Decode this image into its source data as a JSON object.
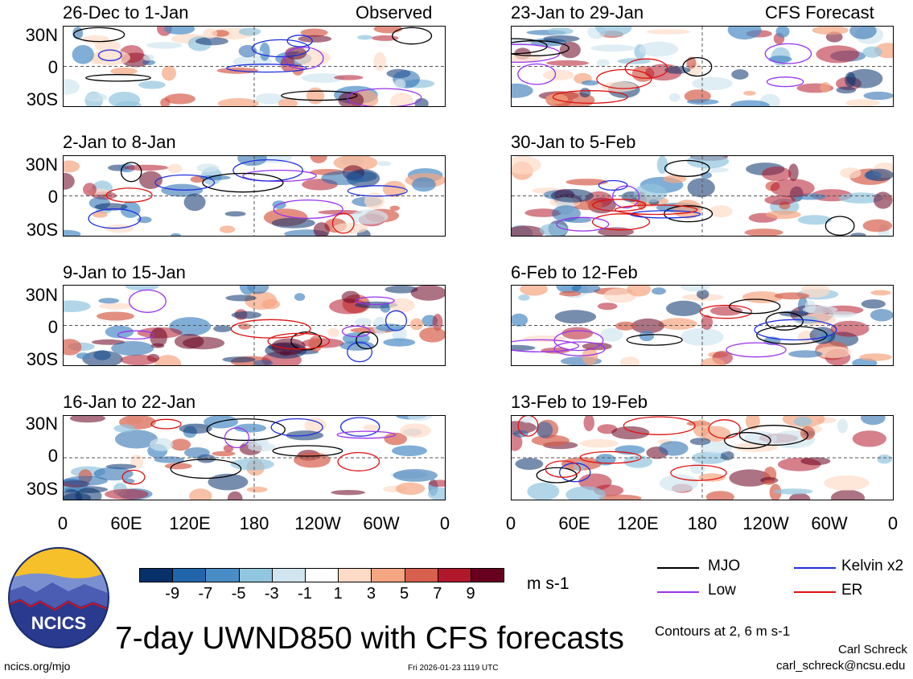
{
  "chart_data": {
    "type": "heatmap",
    "title": "7-day UWND850 with CFS forecasts",
    "units": "m s-1",
    "x_ticks": [
      "0",
      "60E",
      "120E",
      "180",
      "120W",
      "60W",
      "0"
    ],
    "y_ticks": [
      "30N",
      "0",
      "30S"
    ],
    "colorbar": {
      "tick_labels": [
        "-9",
        "-7",
        "-5",
        "-3",
        "-1",
        "1",
        "3",
        "5",
        "7",
        "9"
      ],
      "colors": [
        "#08306b",
        "#2166ac",
        "#4a8cc6",
        "#92c5de",
        "#d1e5f0",
        "#ffffff",
        "#fddbc7",
        "#f4a582",
        "#d6604d",
        "#b2182b",
        "#67001f"
      ]
    },
    "legend": [
      {
        "label": "MJO",
        "color": "#000000"
      },
      {
        "label": "Kelvin x2",
        "color": "#1f2fe0"
      },
      {
        "label": "Low",
        "color": "#9933ee"
      },
      {
        "label": "ER",
        "color": "#e01010"
      }
    ],
    "contours_note": "Contours at 2, 6 m s-1",
    "panels": [
      {
        "label": "26-Dec to 1-Jan",
        "tag": "Observed"
      },
      {
        "label": "2-Jan to 8-Jan",
        "tag": ""
      },
      {
        "label": "9-Jan to 15-Jan",
        "tag": ""
      },
      {
        "label": "16-Jan to 22-Jan",
        "tag": ""
      },
      {
        "label": "23-Jan to 29-Jan",
        "tag": "CFS Forecast"
      },
      {
        "label": "30-Jan to 5-Feb",
        "tag": ""
      },
      {
        "label": "6-Feb to 12-Feb",
        "tag": ""
      },
      {
        "label": "13-Feb to 19-Feb",
        "tag": ""
      }
    ]
  },
  "footer": {
    "left": "ncics.org/mjo",
    "center": "Fri 2026-01-23 1119 UTC",
    "right1": "Carl Schreck",
    "right2": "carl_schreck@ncsu.edu",
    "logo_text": "NCICS"
  }
}
